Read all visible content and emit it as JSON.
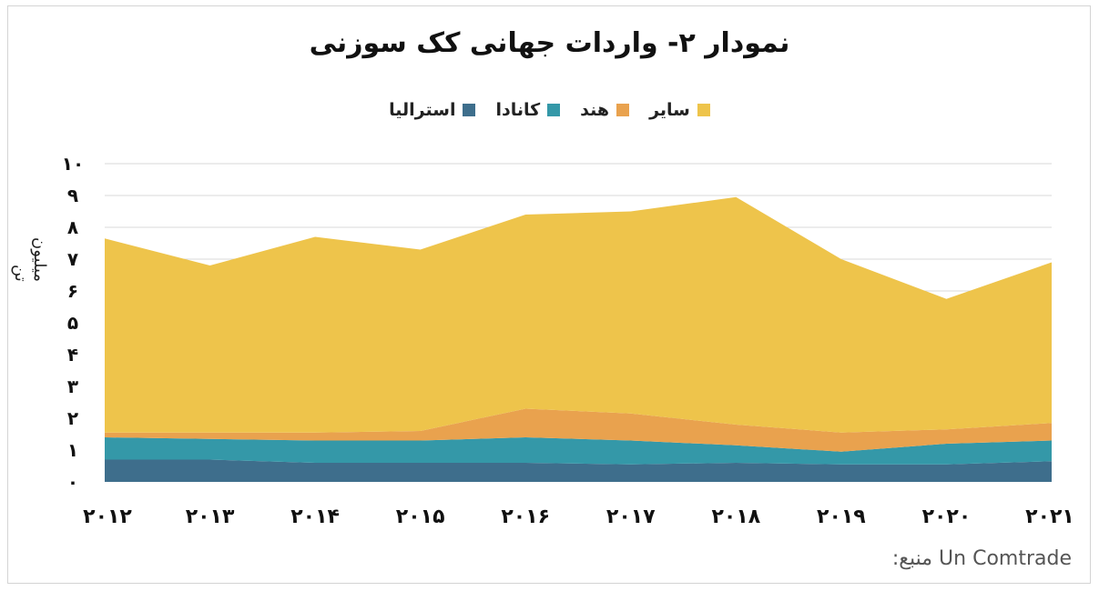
{
  "chart_data": {
    "type": "area",
    "stacked": true,
    "title": "نمودار ۲- واردات جهانی کک سوزنی",
    "ylabel": "میلیون تن",
    "xlabel": "",
    "x": [
      "۲۰۱۲",
      "۲۰۱۳",
      "۲۰۱۴",
      "۲۰۱۵",
      "۲۰۱۶",
      "۲۰۱۷",
      "۲۰۱۸",
      "۲۰۱۹",
      "۲۰۲۰",
      "۲۰۲۱"
    ],
    "yticks": [
      "۰",
      "۱",
      "۲",
      "۳",
      "۴",
      "۵",
      "۶",
      "۷",
      "۸",
      "۹",
      "۱۰"
    ],
    "ylim": [
      0,
      10
    ],
    "grid": true,
    "legend_position": "top",
    "series": [
      {
        "name": "استرالیا",
        "color": "#3e6e8c",
        "values": [
          0.7,
          0.7,
          0.6,
          0.6,
          0.6,
          0.55,
          0.6,
          0.55,
          0.55,
          0.65
        ]
      },
      {
        "name": "کانادا",
        "color": "#3498a8",
        "values": [
          0.7,
          0.65,
          0.7,
          0.7,
          0.8,
          0.75,
          0.55,
          0.4,
          0.65,
          0.65
        ]
      },
      {
        "name": "هند",
        "color": "#e9a24e",
        "values": [
          0.15,
          0.2,
          0.25,
          0.3,
          0.9,
          0.85,
          0.65,
          0.6,
          0.45,
          0.55
        ]
      },
      {
        "name": "سایر",
        "color": "#eec44b",
        "values": [
          6.1,
          5.25,
          6.15,
          5.7,
          6.1,
          6.35,
          7.15,
          5.45,
          4.1,
          5.05
        ]
      }
    ]
  },
  "source": {
    "label": "منبع:",
    "value": "Un Comtrade"
  }
}
